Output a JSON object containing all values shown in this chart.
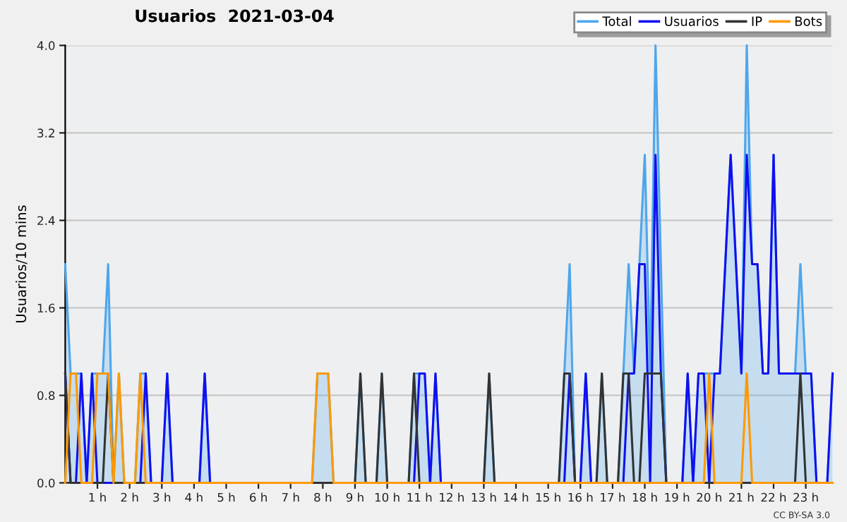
{
  "chart_data": {
    "type": "line",
    "title": "Usuarios  2021-03-04",
    "ylabel": "Usuarios/10 mins",
    "annotations": [
      "CC BY-SA 3.0"
    ],
    "x": [
      0,
      0.167,
      0.333,
      0.5,
      0.667,
      0.833,
      1,
      1.167,
      1.333,
      1.5,
      1.667,
      1.833,
      2,
      2.167,
      2.333,
      2.5,
      2.667,
      2.833,
      3,
      3.167,
      3.333,
      3.5,
      3.667,
      3.833,
      4,
      4.167,
      4.333,
      4.5,
      4.667,
      4.833,
      5,
      5.167,
      5.333,
      5.5,
      5.667,
      5.833,
      6,
      6.167,
      6.333,
      6.5,
      6.667,
      6.833,
      7,
      7.167,
      7.333,
      7.5,
      7.667,
      7.833,
      8,
      8.167,
      8.333,
      8.5,
      8.667,
      8.833,
      9,
      9.167,
      9.333,
      9.5,
      9.667,
      9.833,
      10,
      10.167,
      10.333,
      10.5,
      10.667,
      10.833,
      11,
      11.167,
      11.333,
      11.5,
      11.667,
      11.833,
      12,
      12.167,
      12.333,
      12.5,
      12.667,
      12.833,
      13,
      13.167,
      13.333,
      13.5,
      13.667,
      13.833,
      14,
      14.167,
      14.333,
      14.5,
      14.667,
      14.833,
      15,
      15.167,
      15.333,
      15.5,
      15.667,
      15.833,
      16,
      16.167,
      16.333,
      16.5,
      16.667,
      16.833,
      17,
      17.167,
      17.333,
      17.5,
      17.667,
      17.833,
      18,
      18.167,
      18.333,
      18.5,
      18.667,
      18.833,
      19,
      19.167,
      19.333,
      19.5,
      19.667,
      19.833,
      20,
      20.167,
      20.333,
      20.5,
      20.667,
      20.833,
      21,
      21.167,
      21.333,
      21.5,
      21.667,
      21.833,
      22,
      22.167,
      22.333,
      22.5,
      22.667,
      22.833,
      23,
      23.167,
      23.333,
      23.5,
      23.667,
      23.833
    ],
    "series": [
      {
        "name": "Total",
        "type": "area",
        "color": "#4da6ec",
        "values": [
          2,
          1,
          1,
          1,
          0,
          1,
          1,
          1,
          2,
          0,
          1,
          0,
          0,
          0,
          1,
          1,
          0,
          0,
          0,
          1,
          0,
          0,
          0,
          0,
          0,
          0,
          1,
          0,
          0,
          0,
          0,
          0,
          0,
          0,
          0,
          0,
          0,
          0,
          0,
          0,
          0,
          0,
          0,
          0,
          0,
          0,
          0,
          1,
          1,
          1,
          0,
          0,
          0,
          0,
          0,
          1,
          0,
          0,
          0,
          1,
          0,
          0,
          0,
          0,
          0,
          1,
          1,
          1,
          0,
          1,
          0,
          0,
          0,
          0,
          0,
          0,
          0,
          0,
          0,
          1,
          0,
          0,
          0,
          0,
          0,
          0,
          0,
          0,
          0,
          0,
          0,
          0,
          0,
          1,
          2,
          0,
          0,
          1,
          0,
          0,
          1,
          0,
          0,
          0,
          1,
          2,
          1,
          2,
          3,
          1,
          4,
          2,
          0,
          0,
          0,
          0,
          1,
          0,
          1,
          1,
          1,
          1,
          1,
          2,
          3,
          2,
          1,
          4,
          2,
          2,
          1,
          1,
          3,
          1,
          1,
          1,
          1,
          2,
          1,
          1,
          0,
          0,
          0,
          1
        ]
      },
      {
        "name": "Usuarios",
        "color": "#1010f0",
        "values": [
          1,
          0,
          0,
          1,
          0,
          1,
          0,
          0,
          0,
          0,
          0,
          0,
          0,
          0,
          0,
          1,
          0,
          0,
          0,
          1,
          0,
          0,
          0,
          0,
          0,
          0,
          1,
          0,
          0,
          0,
          0,
          0,
          0,
          0,
          0,
          0,
          0,
          0,
          0,
          0,
          0,
          0,
          0,
          0,
          0,
          0,
          0,
          0,
          0,
          0,
          0,
          0,
          0,
          0,
          0,
          0,
          0,
          0,
          0,
          0,
          0,
          0,
          0,
          0,
          0,
          0,
          1,
          1,
          0,
          1,
          0,
          0,
          0,
          0,
          0,
          0,
          0,
          0,
          0,
          0,
          0,
          0,
          0,
          0,
          0,
          0,
          0,
          0,
          0,
          0,
          0,
          0,
          0,
          0,
          1,
          0,
          0,
          1,
          0,
          0,
          0,
          0,
          0,
          0,
          0,
          1,
          1,
          2,
          2,
          0,
          3,
          1,
          0,
          0,
          0,
          0,
          1,
          0,
          1,
          1,
          0,
          1,
          1,
          2,
          3,
          2,
          1,
          3,
          2,
          2,
          1,
          1,
          3,
          1,
          1,
          1,
          1,
          1,
          1,
          1,
          0,
          0,
          0,
          1
        ]
      },
      {
        "name": "IP",
        "color": "#333333",
        "values": [
          1,
          0,
          0,
          0,
          0,
          0,
          0,
          0,
          1,
          0,
          0,
          0,
          0,
          0,
          0,
          0,
          0,
          0,
          0,
          0,
          0,
          0,
          0,
          0,
          0,
          0,
          0,
          0,
          0,
          0,
          0,
          0,
          0,
          0,
          0,
          0,
          0,
          0,
          0,
          0,
          0,
          0,
          0,
          0,
          0,
          0,
          0,
          0,
          0,
          0,
          0,
          0,
          0,
          0,
          0,
          1,
          0,
          0,
          0,
          1,
          0,
          0,
          0,
          0,
          0,
          1,
          0,
          0,
          0,
          0,
          0,
          0,
          0,
          0,
          0,
          0,
          0,
          0,
          0,
          1,
          0,
          0,
          0,
          0,
          0,
          0,
          0,
          0,
          0,
          0,
          0,
          0,
          0,
          1,
          1,
          0,
          0,
          0,
          0,
          0,
          1,
          0,
          0,
          0,
          1,
          1,
          0,
          0,
          1,
          1,
          1,
          1,
          0,
          0,
          0,
          0,
          0,
          0,
          0,
          0,
          0,
          0,
          0,
          0,
          0,
          0,
          0,
          0,
          0,
          0,
          0,
          0,
          0,
          0,
          0,
          0,
          0,
          1,
          0,
          0,
          0,
          null,
          null,
          null
        ]
      },
      {
        "name": "Bots",
        "color": "#ff9900",
        "values": [
          0,
          1,
          1,
          0,
          0,
          0,
          1,
          1,
          1,
          0,
          1,
          0,
          0,
          0,
          1,
          0,
          0,
          0,
          0,
          0,
          0,
          0,
          0,
          0,
          0,
          0,
          0,
          0,
          0,
          0,
          0,
          0,
          0,
          0,
          0,
          0,
          0,
          0,
          0,
          0,
          0,
          0,
          0,
          0,
          0,
          0,
          0,
          1,
          1,
          1,
          0,
          0,
          0,
          0,
          0,
          0,
          0,
          0,
          0,
          0,
          0,
          0,
          0,
          0,
          0,
          0,
          0,
          0,
          0,
          0,
          0,
          0,
          0,
          0,
          0,
          0,
          0,
          0,
          0,
          0,
          0,
          0,
          0,
          0,
          0,
          0,
          0,
          0,
          0,
          0,
          0,
          0,
          0,
          0,
          0,
          0,
          0,
          0,
          0,
          0,
          0,
          0,
          0,
          0,
          0,
          0,
          0,
          0,
          0,
          0,
          0,
          0,
          0,
          0,
          0,
          0,
          0,
          0,
          0,
          0,
          1,
          0,
          0,
          0,
          0,
          0,
          0,
          1,
          0,
          0,
          0,
          0,
          0,
          0,
          0,
          0,
          0,
          0,
          0,
          0,
          0,
          0,
          0,
          0
        ]
      }
    ],
    "xlim": [
      0,
      23.833
    ],
    "xticks": [
      {
        "value": 1,
        "label": "1 h"
      },
      {
        "value": 2,
        "label": "2 h"
      },
      {
        "value": 3,
        "label": "3 h"
      },
      {
        "value": 4,
        "label": "4 h"
      },
      {
        "value": 5,
        "label": "5 h"
      },
      {
        "value": 6,
        "label": "6 h"
      },
      {
        "value": 7,
        "label": "7 h"
      },
      {
        "value": 8,
        "label": "8 h"
      },
      {
        "value": 9,
        "label": "9 h"
      },
      {
        "value": 10,
        "label": "10 h"
      },
      {
        "value": 11,
        "label": "11 h"
      },
      {
        "value": 12,
        "label": "12 h"
      },
      {
        "value": 13,
        "label": "13 h"
      },
      {
        "value": 14,
        "label": "14 h"
      },
      {
        "value": 15,
        "label": "15 h"
      },
      {
        "value": 16,
        "label": "16 h"
      },
      {
        "value": 17,
        "label": "17 h"
      },
      {
        "value": 18,
        "label": "18 h"
      },
      {
        "value": 19,
        "label": "19 h"
      },
      {
        "value": 20,
        "label": "20 h"
      },
      {
        "value": 21,
        "label": "21 h"
      },
      {
        "value": 22,
        "label": "22 h"
      },
      {
        "value": 23,
        "label": "23 h"
      }
    ],
    "ylim": [
      0,
      4
    ],
    "yticks": [
      {
        "value": 0,
        "label": "0.0"
      },
      {
        "value": 0.8,
        "label": "0.8"
      },
      {
        "value": 1.6,
        "label": "1.6"
      },
      {
        "value": 2.4,
        "label": "2.4"
      },
      {
        "value": 3.2,
        "label": "3.2"
      },
      {
        "value": 4,
        "label": "4.0"
      }
    ],
    "grid": "y",
    "legend": "top right",
    "marker": "none",
    "line_style": "solid"
  }
}
